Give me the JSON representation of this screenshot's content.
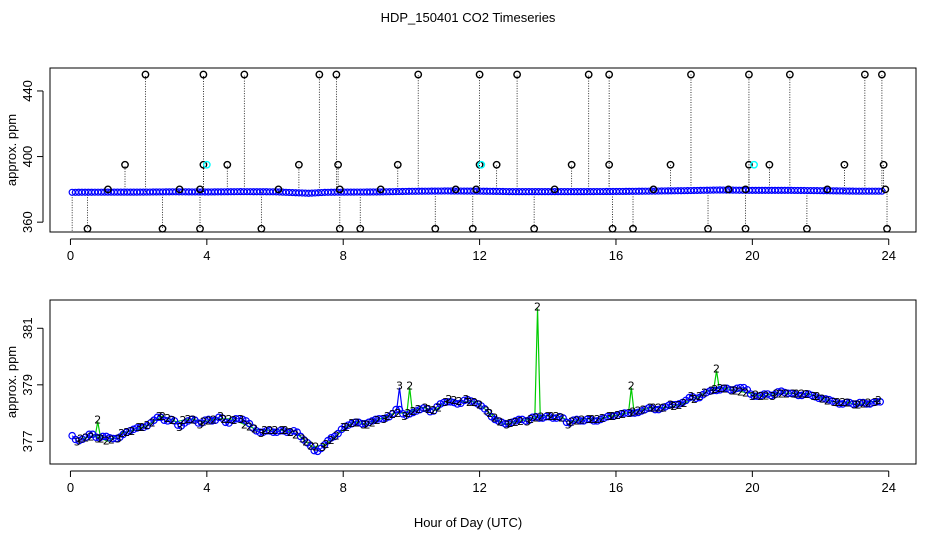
{
  "title": "HDP_150401  CO2 Timeseries",
  "xlabel": "Hour of Day (UTC)",
  "colors": {
    "axis": "#000000",
    "series_blue": "#0000ff",
    "series_green": "#00cc00",
    "marker_black": "#000000",
    "marker_cyan": "#00ffff",
    "spike_line": "#000000"
  },
  "chart_data": [
    {
      "id": "top",
      "type": "scatter",
      "title": "HDP_150401  CO2 Timeseries",
      "xlabel": "",
      "ylabel": "approx. ppm",
      "xlim": [
        -0.6,
        24.8
      ],
      "ylim": [
        354,
        454
      ],
      "xticks": [
        0,
        4,
        8,
        12,
        16,
        20,
        24
      ],
      "yticks": [
        360,
        400,
        440
      ],
      "baseline": [
        [
          0.05,
          378.2
        ],
        [
          1,
          378.3
        ],
        [
          2,
          378.3
        ],
        [
          3,
          378.5
        ],
        [
          4,
          378.4
        ],
        [
          5,
          378.6
        ],
        [
          6,
          378.5
        ],
        [
          7,
          377.6
        ],
        [
          7.5,
          378.2
        ],
        [
          8,
          378.3
        ],
        [
          9,
          378.4
        ],
        [
          10,
          378.8
        ],
        [
          11,
          379.0
        ],
        [
          12,
          378.9
        ],
        [
          13,
          378.6
        ],
        [
          14,
          378.6
        ],
        [
          15,
          378.6
        ],
        [
          16,
          378.7
        ],
        [
          17,
          378.9
        ],
        [
          18,
          379.2
        ],
        [
          19,
          379.6
        ],
        [
          20,
          379.4
        ],
        [
          21,
          379.4
        ],
        [
          22,
          379.2
        ],
        [
          23,
          378.9
        ],
        [
          23.8,
          378.9
        ]
      ],
      "spikes": [
        {
          "x": 0.5,
          "y": 356
        },
        {
          "x": 1.1,
          "y": 380
        },
        {
          "x": 1.6,
          "y": 395
        },
        {
          "x": 2.2,
          "y": 450
        },
        {
          "x": 2.7,
          "y": 356
        },
        {
          "x": 3.2,
          "y": 380
        },
        {
          "x": 3.8,
          "y": 356
        },
        {
          "x": 3.8,
          "y": 380
        },
        {
          "x": 3.9,
          "y": 395
        },
        {
          "x": 3.9,
          "y": 450
        },
        {
          "x": 4.6,
          "y": 395
        },
        {
          "x": 5.1,
          "y": 450
        },
        {
          "x": 5.6,
          "y": 356
        },
        {
          "x": 6.1,
          "y": 380
        },
        {
          "x": 6.7,
          "y": 395
        },
        {
          "x": 7.3,
          "y": 450
        },
        {
          "x": 7.8,
          "y": 450
        },
        {
          "x": 7.85,
          "y": 395
        },
        {
          "x": 7.9,
          "y": 380
        },
        {
          "x": 7.9,
          "y": 356
        },
        {
          "x": 8.5,
          "y": 356
        },
        {
          "x": 9.1,
          "y": 380
        },
        {
          "x": 9.6,
          "y": 395
        },
        {
          "x": 10.2,
          "y": 450
        },
        {
          "x": 10.7,
          "y": 356
        },
        {
          "x": 11.3,
          "y": 380
        },
        {
          "x": 11.8,
          "y": 356
        },
        {
          "x": 11.9,
          "y": 380
        },
        {
          "x": 12.0,
          "y": 450
        },
        {
          "x": 12.0,
          "y": 395
        },
        {
          "x": 12.5,
          "y": 395
        },
        {
          "x": 13.1,
          "y": 450
        },
        {
          "x": 13.6,
          "y": 356
        },
        {
          "x": 14.2,
          "y": 380
        },
        {
          "x": 14.7,
          "y": 395
        },
        {
          "x": 15.2,
          "y": 450
        },
        {
          "x": 15.8,
          "y": 450
        },
        {
          "x": 15.8,
          "y": 395
        },
        {
          "x": 15.9,
          "y": 356
        },
        {
          "x": 16.5,
          "y": 356
        },
        {
          "x": 17.1,
          "y": 380
        },
        {
          "x": 17.6,
          "y": 395
        },
        {
          "x": 18.2,
          "y": 450
        },
        {
          "x": 18.7,
          "y": 356
        },
        {
          "x": 19.3,
          "y": 380
        },
        {
          "x": 19.8,
          "y": 356
        },
        {
          "x": 19.8,
          "y": 380
        },
        {
          "x": 19.9,
          "y": 395
        },
        {
          "x": 19.9,
          "y": 450
        },
        {
          "x": 20.5,
          "y": 395
        },
        {
          "x": 21.1,
          "y": 450
        },
        {
          "x": 21.6,
          "y": 356
        },
        {
          "x": 22.2,
          "y": 380
        },
        {
          "x": 22.7,
          "y": 395
        },
        {
          "x": 23.3,
          "y": 450
        },
        {
          "x": 23.8,
          "y": 450
        },
        {
          "x": 23.85,
          "y": 395
        },
        {
          "x": 23.9,
          "y": 380
        },
        {
          "x": 23.95,
          "y": 356
        }
      ],
      "cyan_points": [
        {
          "x": 4.0,
          "y": 395
        },
        {
          "x": 12.05,
          "y": 395
        },
        {
          "x": 20.05,
          "y": 395
        }
      ]
    },
    {
      "id": "bottom",
      "type": "scatter",
      "title": "",
      "xlabel": "Hour of Day (UTC)",
      "ylabel": "approx. ppm",
      "xlim": [
        -0.6,
        24.8
      ],
      "ylim": [
        376.2,
        382.0
      ],
      "xticks": [
        0,
        4,
        8,
        12,
        16,
        20,
        24
      ],
      "yticks": [
        377,
        379,
        381
      ],
      "series": [
        {
          "name": "3",
          "color": "#0000ff",
          "points": [
            [
              0.05,
              377.2
            ],
            [
              0.2,
              377.0
            ],
            [
              0.4,
              377.1
            ],
            [
              0.6,
              377.3
            ],
            [
              0.8,
              377.1
            ],
            [
              1,
              377.2
            ],
            [
              1.2,
              377.1
            ],
            [
              1.4,
              377.1
            ],
            [
              1.6,
              377.3
            ],
            [
              1.8,
              377.4
            ],
            [
              2.0,
              377.5
            ],
            [
              2.2,
              377.5
            ],
            [
              2.4,
              377.7
            ],
            [
              2.6,
              377.9
            ],
            [
              2.8,
              377.7
            ],
            [
              3.0,
              377.8
            ],
            [
              3.2,
              377.5
            ],
            [
              3.4,
              377.7
            ],
            [
              3.6,
              377.8
            ],
            [
              3.8,
              377.6
            ],
            [
              4.0,
              377.8
            ],
            [
              4.2,
              377.7
            ],
            [
              4.4,
              377.9
            ],
            [
              4.6,
              377.6
            ],
            [
              4.8,
              377.8
            ],
            [
              5.0,
              377.8
            ],
            [
              5.2,
              377.7
            ],
            [
              5.4,
              377.4
            ],
            [
              5.6,
              377.3
            ],
            [
              5.8,
              377.4
            ],
            [
              6.0,
              377.3
            ],
            [
              6.2,
              377.4
            ],
            [
              6.4,
              377.3
            ],
            [
              6.6,
              377.4
            ],
            [
              6.8,
              377.1
            ],
            [
              7.0,
              376.9
            ],
            [
              7.2,
              376.6
            ],
            [
              7.4,
              376.8
            ],
            [
              7.6,
              377.1
            ],
            [
              7.8,
              377.2
            ],
            [
              8.0,
              377.5
            ],
            [
              8.2,
              377.6
            ],
            [
              8.4,
              377.7
            ],
            [
              8.6,
              377.6
            ],
            [
              8.8,
              377.7
            ],
            [
              9.0,
              377.8
            ],
            [
              9.2,
              377.8
            ],
            [
              9.4,
              377.9
            ],
            [
              9.6,
              378.2
            ],
            [
              9.8,
              377.9
            ],
            [
              10.0,
              378.0
            ],
            [
              10.2,
              378.1
            ],
            [
              10.4,
              378.2
            ],
            [
              10.6,
              378.0
            ],
            [
              10.8,
              378.3
            ],
            [
              11.0,
              378.4
            ],
            [
              11.2,
              378.4
            ],
            [
              11.4,
              378.3
            ],
            [
              11.6,
              378.5
            ],
            [
              11.8,
              378.4
            ],
            [
              12.0,
              378.3
            ],
            [
              12.2,
              378.1
            ],
            [
              12.4,
              377.8
            ],
            [
              12.6,
              377.7
            ],
            [
              12.8,
              377.6
            ],
            [
              13.0,
              377.7
            ],
            [
              13.2,
              377.8
            ],
            [
              13.4,
              377.7
            ],
            [
              13.6,
              377.9
            ],
            [
              13.8,
              377.8
            ],
            [
              14.0,
              377.9
            ],
            [
              14.2,
              377.8
            ],
            [
              14.4,
              377.9
            ],
            [
              14.6,
              377.6
            ],
            [
              14.8,
              377.8
            ],
            [
              15.0,
              377.7
            ],
            [
              15.2,
              377.8
            ],
            [
              15.4,
              377.7
            ],
            [
              15.6,
              377.8
            ],
            [
              15.8,
              377.9
            ],
            [
              16.0,
              377.9
            ],
            [
              16.2,
              378.0
            ],
            [
              16.4,
              378.0
            ],
            [
              16.6,
              378.0
            ],
            [
              16.8,
              378.1
            ],
            [
              17.0,
              378.2
            ],
            [
              17.2,
              378.1
            ],
            [
              17.4,
              378.2
            ],
            [
              17.6,
              378.3
            ],
            [
              17.8,
              378.3
            ],
            [
              18.0,
              378.4
            ],
            [
              18.2,
              378.6
            ],
            [
              18.4,
              378.5
            ],
            [
              18.6,
              378.7
            ],
            [
              18.8,
              378.8
            ],
            [
              19.0,
              378.8
            ],
            [
              19.2,
              378.9
            ],
            [
              19.4,
              378.8
            ],
            [
              19.6,
              378.9
            ],
            [
              19.8,
              378.9
            ],
            [
              20.0,
              378.6
            ],
            [
              20.2,
              378.6
            ],
            [
              20.4,
              378.7
            ],
            [
              20.6,
              378.6
            ],
            [
              20.8,
              378.8
            ],
            [
              21.0,
              378.7
            ],
            [
              21.2,
              378.7
            ],
            [
              21.4,
              378.6
            ],
            [
              21.6,
              378.7
            ],
            [
              21.8,
              378.6
            ],
            [
              22.0,
              378.5
            ],
            [
              22.2,
              378.5
            ],
            [
              22.4,
              378.4
            ],
            [
              22.6,
              378.3
            ],
            [
              22.8,
              378.4
            ],
            [
              23.0,
              378.3
            ],
            [
              23.2,
              378.4
            ],
            [
              23.4,
              378.3
            ],
            [
              23.6,
              378.4
            ],
            [
              23.75,
              378.4
            ]
          ],
          "spikes": [
            [
              9.65,
              378.9
            ]
          ]
        },
        {
          "name": "2",
          "color": "#00cc00",
          "points": [
            [
              0.3,
              377.1
            ],
            [
              0.7,
              377.2
            ],
            [
              1.1,
              377.0
            ],
            [
              1.5,
              377.3
            ],
            [
              1.9,
              377.4
            ],
            [
              2.3,
              377.6
            ],
            [
              2.7,
              377.9
            ],
            [
              3.1,
              377.7
            ],
            [
              3.5,
              377.8
            ],
            [
              3.9,
              377.7
            ],
            [
              4.3,
              377.8
            ],
            [
              4.7,
              377.8
            ],
            [
              5.1,
              377.6
            ],
            [
              5.5,
              377.4
            ],
            [
              5.9,
              377.4
            ],
            [
              6.3,
              377.4
            ],
            [
              6.7,
              377.2
            ],
            [
              7.1,
              376.8
            ],
            [
              7.5,
              376.9
            ],
            [
              7.9,
              377.3
            ],
            [
              8.3,
              377.7
            ],
            [
              8.7,
              377.6
            ],
            [
              9.1,
              377.8
            ],
            [
              9.5,
              378.0
            ],
            [
              9.9,
              378.0
            ],
            [
              10.3,
              378.2
            ],
            [
              10.7,
              378.1
            ],
            [
              11.1,
              378.5
            ],
            [
              11.5,
              378.4
            ],
            [
              11.9,
              378.4
            ],
            [
              12.3,
              378.0
            ],
            [
              12.7,
              377.6
            ],
            [
              13.1,
              377.7
            ],
            [
              13.5,
              377.8
            ],
            [
              13.9,
              377.9
            ],
            [
              14.3,
              377.9
            ],
            [
              14.7,
              377.7
            ],
            [
              15.1,
              377.8
            ],
            [
              15.5,
              377.8
            ],
            [
              15.9,
              377.9
            ],
            [
              16.3,
              378.0
            ],
            [
              16.7,
              378.1
            ],
            [
              17.1,
              378.2
            ],
            [
              17.5,
              378.2
            ],
            [
              17.9,
              378.3
            ],
            [
              18.3,
              378.5
            ],
            [
              18.7,
              378.8
            ],
            [
              19.1,
              378.9
            ],
            [
              19.5,
              378.8
            ],
            [
              19.9,
              378.7
            ],
            [
              20.3,
              378.6
            ],
            [
              20.7,
              378.7
            ],
            [
              21.1,
              378.7
            ],
            [
              21.5,
              378.7
            ],
            [
              21.9,
              378.6
            ],
            [
              22.3,
              378.4
            ],
            [
              22.7,
              378.4
            ],
            [
              23.1,
              378.3
            ],
            [
              23.5,
              378.4
            ],
            [
              23.8,
              378.5
            ]
          ],
          "spikes": [
            [
              0.8,
              377.7
            ],
            [
              13.7,
              381.7
            ],
            [
              16.45,
              378.9
            ],
            [
              18.95,
              379.5
            ],
            [
              9.95,
              378.9
            ]
          ]
        }
      ]
    }
  ]
}
